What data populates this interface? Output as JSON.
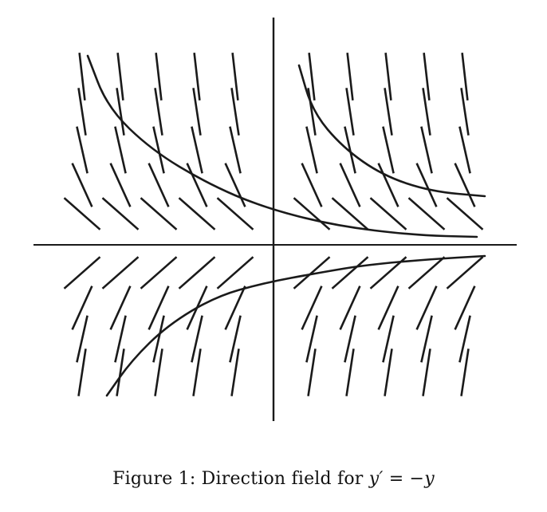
{
  "figure": {
    "caption_label": "Figure 1:",
    "caption_text": "Direction field for",
    "caption_equation": "y′ = −y"
  },
  "chart_data": {
    "type": "direction_field",
    "equation": "y' = -y",
    "grid_x": [
      -5,
      -4,
      -3,
      -2,
      -1,
      0,
      1,
      2,
      3,
      4,
      5
    ],
    "grid_y": [
      -3,
      -2,
      -1,
      -0.4,
      0.4,
      1,
      2,
      3,
      4
    ],
    "solution_curves": [
      {
        "c": 2.2,
        "x_range": [
          -4.9,
          5
        ]
      },
      {
        "c": 1.35,
        "x_range": [
          -4.9,
          5
        ]
      },
      {
        "c": -0.8,
        "x_range": [
          -4.4,
          5
        ]
      },
      {
        "c": -1.1,
        "x_range": [
          -4.4,
          5
        ]
      }
    ],
    "axes": {
      "x_visible": true,
      "y_visible": true
    },
    "ink_color": "#1a1a1a"
  }
}
